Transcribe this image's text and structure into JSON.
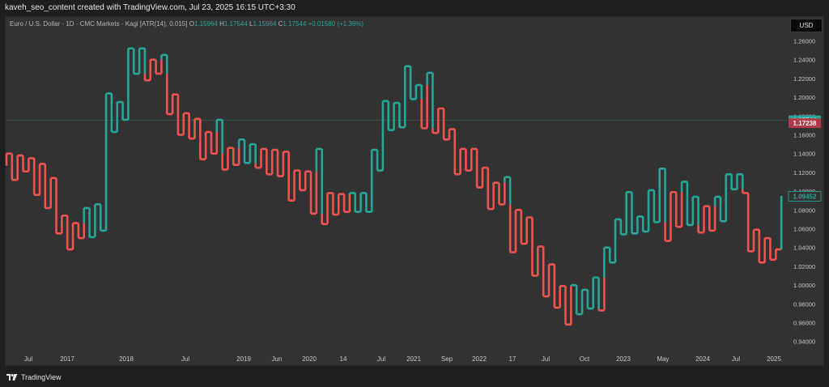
{
  "header": {
    "caption": "kaveh_seo_content created with TradingView.com, Jul 23, 2025 16:15 UTC+3:30"
  },
  "legend": {
    "symbol": "Euro / U.S. Dollar · 1D · CMC Markets · Kagi [ATR(14), 0.015]",
    "o_key": "O",
    "o_val": "1.15964",
    "h_key": "H",
    "h_val": "1.17544",
    "l_key": "L",
    "l_val": "1.15964",
    "c_key": "C",
    "c_val": "1.17544",
    "change": "+0.01580 (+1.36%)"
  },
  "currency_button": "USD",
  "footer": {
    "brand": "TradingView"
  },
  "colors": {
    "up": "#26a69a",
    "down": "#ef5350",
    "background": "#323232",
    "grid_line": "#2f5a4a"
  },
  "chart_data": {
    "type": "line",
    "subtype": "kagi",
    "title": "",
    "xlabel": "",
    "ylabel": "",
    "ylim": [
      0.93,
      1.27
    ],
    "grid": false,
    "y_ticks": [
      "1.26000",
      "1.24000",
      "1.22000",
      "1.20000",
      "1.18000",
      "1.16000",
      "1.14000",
      "1.12000",
      "1.10000",
      "1.08000",
      "1.06000",
      "1.04000",
      "1.02000",
      "1.00000",
      "0.98000",
      "0.96000",
      "0.94000"
    ],
    "x_ticks": [
      "Jul",
      "2017",
      "2018",
      "Jul",
      "2019",
      "Jun",
      "2020",
      "14",
      "Jul",
      "2021",
      "Sep",
      "2022",
      "17",
      "Jul",
      "Oct",
      "2023",
      "May",
      "2024",
      "Jul",
      "2025"
    ],
    "price_labels": [
      {
        "text": "1.17544",
        "value": 1.17544,
        "color": "#26a69a"
      },
      {
        "text": "1.17238",
        "value": 1.17238,
        "color": "#b23a46"
      },
      {
        "text": "1.09452",
        "value": 1.09452,
        "color": "#26a69a"
      }
    ],
    "horizontal_line": 1.17544,
    "kagi_values": [
      1.127,
      1.14,
      1.112,
      1.138,
      1.121,
      1.135,
      1.096,
      1.129,
      1.082,
      1.114,
      1.055,
      1.074,
      1.038,
      1.066,
      1.05,
      1.082,
      1.051,
      1.086,
      1.058,
      1.204,
      1.163,
      1.195,
      1.176,
      1.252,
      1.225,
      1.252,
      1.218,
      1.24,
      1.225,
      1.245,
      1.182,
      1.203,
      1.16,
      1.183,
      1.156,
      1.177,
      1.134,
      1.163,
      1.14,
      1.176,
      1.123,
      1.146,
      1.128,
      1.155,
      1.13,
      1.15,
      1.125,
      1.145,
      1.118,
      1.144,
      1.116,
      1.142,
      1.09,
      1.122,
      1.101,
      1.121,
      1.076,
      1.145,
      1.065,
      1.098,
      1.075,
      1.097,
      1.078,
      1.098,
      1.078,
      1.098,
      1.078,
      1.144,
      1.122,
      1.196,
      1.165,
      1.194,
      1.168,
      1.233,
      1.198,
      1.213,
      1.167,
      1.226,
      1.162,
      1.188,
      1.155,
      1.166,
      1.118,
      1.145,
      1.122,
      1.145,
      1.104,
      1.125,
      1.081,
      1.109,
      1.086,
      1.115,
      1.035,
      1.08,
      1.044,
      1.072,
      1.01,
      1.041,
      0.988,
      1.022,
      0.976,
      0.999,
      0.958,
      1.0,
      0.969,
      0.995,
      0.975,
      1.008,
      0.973,
      1.04,
      1.024,
      1.07,
      1.054,
      1.099,
      1.055,
      1.073,
      1.057,
      1.101,
      1.067,
      1.124,
      1.047,
      1.099,
      1.062,
      1.11,
      1.064,
      1.094,
      1.056,
      1.084,
      1.058,
      1.094,
      1.068,
      1.118,
      1.102,
      1.118,
      1.098,
      1.036,
      1.059,
      1.024,
      1.05,
      1.027,
      1.038,
      1.095
    ]
  }
}
